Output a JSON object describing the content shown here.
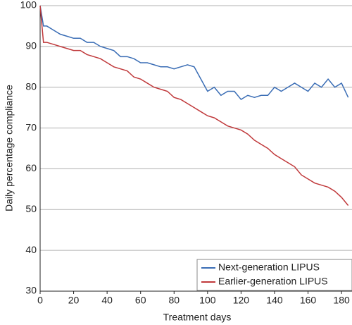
{
  "chart_data": {
    "type": "line",
    "xlabel": "Treatment days",
    "ylabel": "Daily percentage compliance",
    "x": [
      0,
      2,
      4,
      8,
      12,
      16,
      20,
      24,
      28,
      32,
      36,
      40,
      44,
      48,
      52,
      56,
      60,
      64,
      68,
      72,
      76,
      80,
      84,
      88,
      92,
      96,
      100,
      104,
      108,
      112,
      116,
      120,
      124,
      128,
      132,
      136,
      140,
      144,
      148,
      152,
      156,
      160,
      164,
      168,
      172,
      176,
      180,
      184
    ],
    "series": [
      {
        "name": "Next-generation LIPUS",
        "color": "#3a6db5",
        "values": [
          100,
          95,
          95,
          94,
          93,
          92.5,
          92,
          92,
          91,
          91,
          90,
          89.5,
          89,
          87.5,
          87.5,
          87,
          86,
          86,
          85.5,
          85,
          85,
          84.5,
          85,
          85.5,
          85,
          82,
          79,
          80,
          78,
          79,
          79,
          77,
          78,
          77.5,
          78,
          78,
          80,
          79,
          80,
          81,
          80,
          79,
          81,
          80,
          82,
          80,
          81,
          77.5
        ]
      },
      {
        "name": "Earlier-generation LIPUS",
        "color": "#c0393b",
        "values": [
          100,
          91,
          91,
          90.5,
          90,
          89.5,
          89,
          89,
          88,
          87.5,
          87,
          86,
          85,
          84.5,
          84,
          82.5,
          82,
          81,
          80,
          79.5,
          79,
          77.5,
          77,
          76,
          75,
          74,
          73,
          72.5,
          71.5,
          70.5,
          70,
          69.5,
          68.5,
          67,
          66,
          65,
          63.5,
          62.5,
          61.5,
          60.5,
          58.5,
          57.5,
          56.5,
          56,
          55.5,
          54.5,
          53,
          51
        ]
      }
    ],
    "xlim": [
      0,
      185
    ],
    "ylim": [
      30,
      100
    ],
    "xticks": [
      0,
      20,
      40,
      60,
      80,
      100,
      120,
      140,
      160,
      180
    ],
    "yticks": [
      30,
      40,
      50,
      60,
      70,
      80,
      90,
      100
    ],
    "grid": true,
    "legend": "lower right"
  }
}
